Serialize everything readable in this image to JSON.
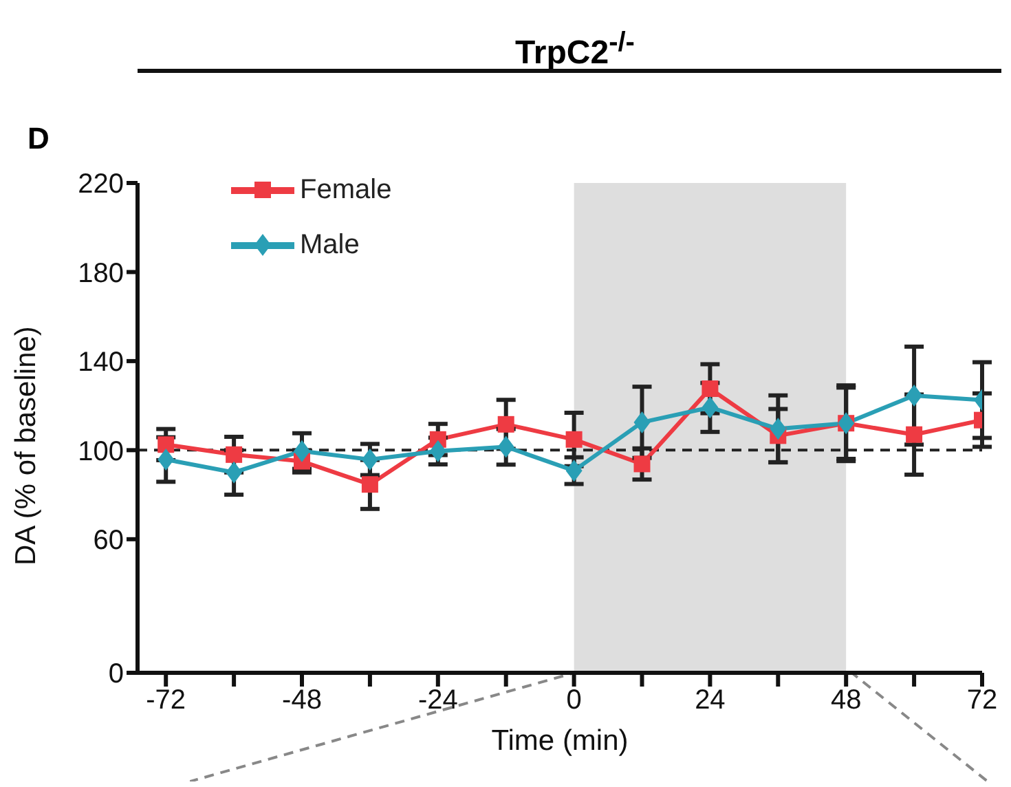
{
  "chart_data": {
    "type": "line",
    "title": "TrpC2$^{-/-}$",
    "annotations": [
      "D"
    ],
    "xlabel": "Time (min)",
    "ylabel": "DA  (% of baseline)",
    "x": [
      -72,
      -60,
      -48,
      -36,
      -24,
      -12,
      0,
      12,
      24,
      36,
      48,
      60,
      72
    ],
    "series": [
      {
        "name": "Female",
        "color": "#ee3b43",
        "marker": "square",
        "values": [
          102.5,
          98,
          95,
          84.6,
          104.8,
          111.6,
          104.8,
          93.8,
          127.6,
          106.5,
          112.1,
          107,
          113.5
        ],
        "errors": [
          7,
          8,
          5,
          11,
          7,
          11,
          12,
          7,
          11,
          12,
          17,
          18,
          12
        ]
      },
      {
        "name": "Male",
        "color": "#2a9fb5",
        "marker": "diamond",
        "values": [
          95.8,
          90,
          99.6,
          95.8,
          99.6,
          101.5,
          90.8,
          112.5,
          119.2,
          109.6,
          112.1,
          124.5,
          122.5
        ],
        "errors": [
          10,
          10,
          8,
          7,
          6,
          8,
          6,
          16,
          11,
          15,
          16,
          22,
          17
        ]
      }
    ],
    "xlim": [
      -77,
      72
    ],
    "xticks": [
      -72,
      {
        "value": -60,
        "label": null
      },
      -48,
      {
        "value": -36,
        "label": null
      },
      -24,
      {
        "value": -12,
        "label": null
      },
      0,
      {
        "value": 12,
        "label": null
      },
      24,
      {
        "value": 36,
        "label": null
      },
      48,
      {
        "value": 60,
        "label": null
      },
      72
    ],
    "ylim": [
      0,
      220
    ],
    "yticks": [
      0,
      60,
      100,
      140,
      180,
      220
    ],
    "ref_lines": [
      {
        "axis": "y",
        "value": 100,
        "line_style": "dashed",
        "color": "#222222"
      }
    ],
    "bands": [
      {
        "axis": "x",
        "from": 0,
        "to": 48,
        "color": "#dedede"
      }
    ],
    "grid": false,
    "legend": "top left",
    "line_style": "solid"
  }
}
